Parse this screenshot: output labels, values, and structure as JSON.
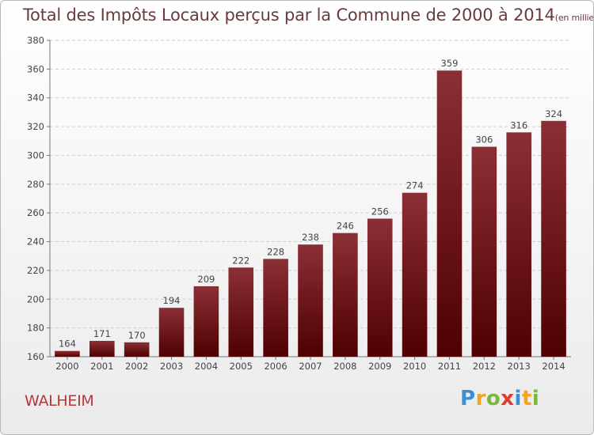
{
  "header": {
    "title": "Total des Impôts Locaux perçus par la Commune de 2000 à 2014",
    "unit": "(en milliers d'€)"
  },
  "footer": {
    "commune": "WALHEIM",
    "logo": "Proxiti",
    "logo_letters": [
      {
        "ch": "P",
        "color": "#3a8fd6"
      },
      {
        "ch": "r",
        "color": "#f2a51c"
      },
      {
        "ch": "o",
        "color": "#7ab83a"
      },
      {
        "ch": "x",
        "color": "#e23a2c"
      },
      {
        "ch": "i",
        "color": "#3a8fd6"
      },
      {
        "ch": "t",
        "color": "#f2a51c"
      },
      {
        "ch": "i",
        "color": "#7ab83a"
      }
    ]
  },
  "chart_data": {
    "type": "bar",
    "title": "Total des Impôts Locaux perçus par la Commune de 2000 à 2014",
    "categories": [
      "2000",
      "2001",
      "2002",
      "2003",
      "2004",
      "2005",
      "2006",
      "2007",
      "2008",
      "2009",
      "2010",
      "2011",
      "2012",
      "2013",
      "2014"
    ],
    "values": [
      164,
      171,
      170,
      194,
      209,
      222,
      228,
      238,
      246,
      256,
      274,
      359,
      306,
      316,
      324
    ],
    "ylim": [
      160,
      380
    ],
    "yticks": [
      160,
      180,
      200,
      220,
      240,
      260,
      280,
      300,
      320,
      340,
      360,
      380
    ],
    "grid": true,
    "bar_color_top": "#8b2f36",
    "bar_color_bottom": "#4f0000"
  }
}
